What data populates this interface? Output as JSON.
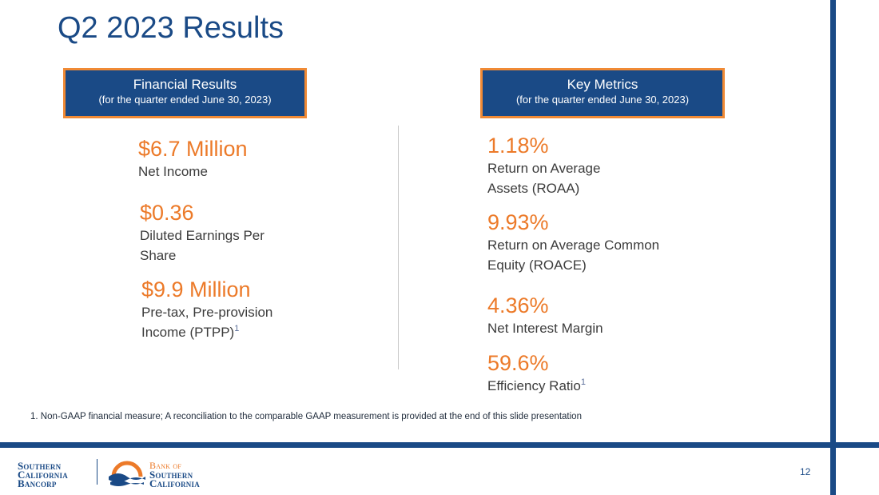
{
  "slide": {
    "title": "Q2 2023 Results",
    "page_number": "12",
    "footnote": "1.   Non-GAAP financial measure; A reconciliation to the comparable GAAP measurement is provided at the end of this slide presentation"
  },
  "financial_results": {
    "header_title": "Financial Results",
    "header_subtitle": "(for the quarter ended June 30, 2023)",
    "items": [
      {
        "value": "$6.7 Million",
        "label_line1": "Net Income",
        "label_line2": ""
      },
      {
        "value": "$0.36",
        "label_line1": "Diluted Earnings Per",
        "label_line2": "Share"
      },
      {
        "value": "$9.9 Million",
        "label_line1": "Pre-tax, Pre-provision",
        "label_line2": "Income (PTPP)",
        "footnote_marker": "1"
      }
    ]
  },
  "key_metrics": {
    "header_title": "Key Metrics",
    "header_subtitle": "(for the quarter ended June 30, 2023)",
    "items": [
      {
        "value": "1.18%",
        "label_line1": "Return on Average",
        "label_line2": "Assets (ROAA)"
      },
      {
        "value": "9.93%",
        "label_line1": "Return on Average Common",
        "label_line2": "Equity (ROACE)"
      },
      {
        "value": "4.36%",
        "label_line1": "Net Interest Margin",
        "label_line2": ""
      },
      {
        "value": "59.6%",
        "label_line1": "Efficiency Ratio",
        "label_line2": "",
        "footnote_marker": "1"
      }
    ]
  },
  "logos": {
    "parent": {
      "line1": "Southern",
      "line2": "California",
      "line3": "Bancorp"
    },
    "bank": {
      "line1": "Bank of",
      "line2": "Southern",
      "line3": "California"
    }
  },
  "colors": {
    "primary_blue": "#1a4a86",
    "accent_orange": "#ec7a29",
    "header_border_orange": "#f08a35"
  }
}
